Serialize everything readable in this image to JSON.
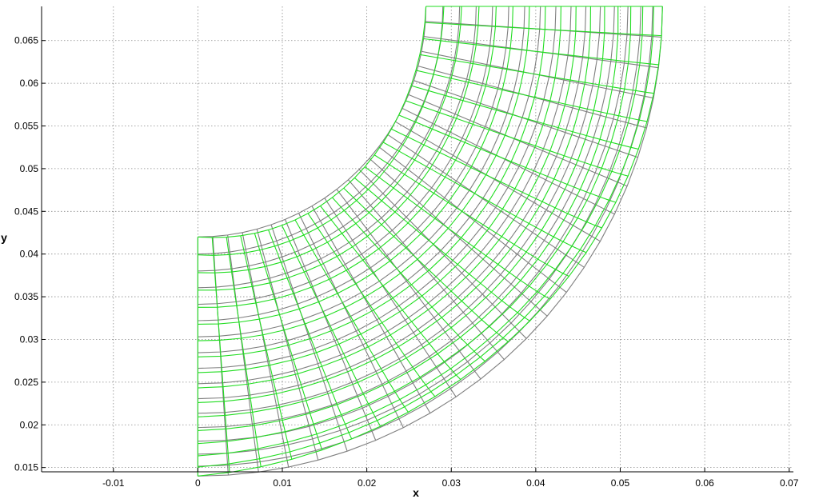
{
  "chart_data": {
    "type": "line",
    "title": "",
    "xlabel": "x",
    "ylabel": "y",
    "xlim": [
      -0.0185,
      0.0705
    ],
    "ylim": [
      0.0145,
      0.069
    ],
    "grid": true,
    "x_ticks": [
      "-0.01",
      "0",
      "0.01",
      "0.02",
      "0.03",
      "0.04",
      "0.05",
      "0.06",
      "0.07"
    ],
    "x_tick_values": [
      -0.01,
      0,
      0.01,
      0.02,
      0.03,
      0.04,
      0.05,
      0.06,
      0.07
    ],
    "y_ticks": [
      "0.015",
      "0.02",
      "0.025",
      "0.03",
      "0.035",
      "0.04",
      "0.045",
      "0.05",
      "0.055",
      "0.06",
      "0.065"
    ],
    "y_tick_values": [
      0.015,
      0.02,
      0.025,
      0.03,
      0.035,
      0.04,
      0.045,
      0.05,
      0.055,
      0.06,
      0.065
    ],
    "series": [
      {
        "color": "#7f7f7f",
        "mesh": "reference",
        "center": [
          0,
          0.069
        ],
        "inner_radius": 0.027,
        "outer_radius": 0.055,
        "angle_start_deg": 0,
        "angle_end_deg": 90,
        "angular_divisions": 24,
        "radial_divisions": 16
      },
      {
        "color": "#22dd22",
        "mesh": "deformed",
        "center": [
          0,
          0.069
        ],
        "inner_radius": 0.027,
        "outer_radius": 0.055,
        "angle_start_deg": 0,
        "angle_end_deg": 90,
        "angular_divisions": 24,
        "radial_divisions": 16
      }
    ]
  }
}
